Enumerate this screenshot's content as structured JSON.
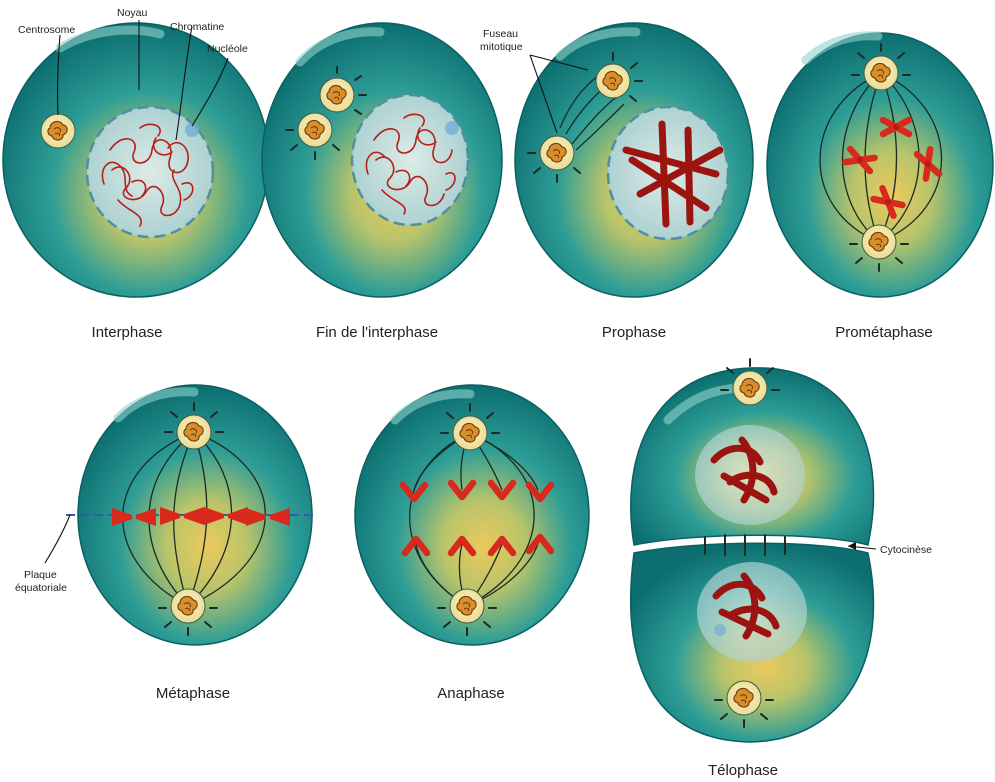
{
  "figure": {
    "stages": {
      "interphase": "Interphase",
      "late_interphase": "Fin de l'interphase",
      "prophase": "Prophase",
      "prometaphase": "Prométaphase",
      "metaphase": "Métaphase",
      "anaphase": "Anaphase",
      "telophase": "Télophase"
    },
    "callouts": {
      "centrosome": "Centrosome",
      "nucleus": "Noyau",
      "chromatin": "Chromatine",
      "nucleolus": "Nucléole",
      "spindle_line1": "Fuseau",
      "spindle_line2": "mitotique",
      "plate_line1": "Plaque",
      "plate_line2": "équatoriale",
      "cytokinesis": "Cytocinèse"
    }
  },
  "colors": {
    "cell_edge": "#0b6b6d",
    "cell_mid": "#2b9b95",
    "cell_center": "#e8c45a",
    "nucleus": "#b9d6d4",
    "chromosome": "#d9281c",
    "centrosome": "#f3e8a8"
  },
  "icons": {
    "centrosome": "centrosome-icon"
  }
}
